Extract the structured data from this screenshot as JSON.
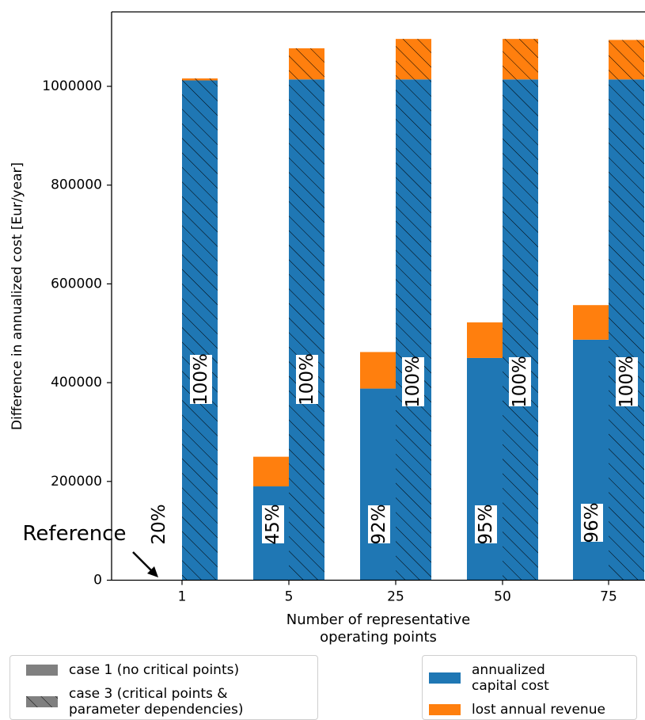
{
  "chart_data": {
    "type": "bar",
    "xlabel": "Number of representative\noperating points",
    "ylabel": "Difference in annualized cost [Eur/year]",
    "ylim": [
      0,
      1150000
    ],
    "y_ticks": [
      "0",
      "200000",
      "400000",
      "600000",
      "800000",
      "1000000"
    ],
    "y_tick_values": [
      0,
      200000,
      400000,
      600000,
      800000,
      1000000
    ],
    "categories": [
      "1",
      "5",
      "25",
      "50",
      "75"
    ],
    "stack_order": [
      "annualized capital cost",
      "lost annual revenue"
    ],
    "series": [
      {
        "name": "case 1 (no critical points)",
        "pattern": "solid",
        "annualized_capital_cost": [
          0,
          190000,
          388000,
          450000,
          487000
        ],
        "lost_annual_revenue": [
          0,
          60000,
          74000,
          72000,
          70000
        ],
        "percent_labels": [
          "20%",
          "45%",
          "92%",
          "95%",
          "96%"
        ]
      },
      {
        "name": "case 3 (critical points &\nparameter dependencies)",
        "pattern": "hatched",
        "annualized_capital_cost": [
          1012000,
          1014000,
          1014000,
          1014000,
          1014000
        ],
        "lost_annual_revenue": [
          4000,
          63000,
          82000,
          82000,
          80000
        ],
        "percent_labels": [
          "100%",
          "100%",
          "100%",
          "100%",
          "100%"
        ]
      }
    ],
    "annotation": {
      "text": "Reference"
    },
    "colors": {
      "capital": "#1f77b4",
      "revenue": "#ff7f0e"
    },
    "legend_case": [
      {
        "label": "case 1 (no critical points)",
        "pattern": "solid"
      },
      {
        "label": "case 3 (critical points &\nparameter dependencies)",
        "pattern": "hatched"
      }
    ],
    "legend_cost": [
      {
        "label": "annualized\ncapital cost",
        "color": "#1f77b4"
      },
      {
        "label": "lost annual revenue",
        "color": "#ff7f0e"
      }
    ],
    "legend_placement": "below plot"
  }
}
